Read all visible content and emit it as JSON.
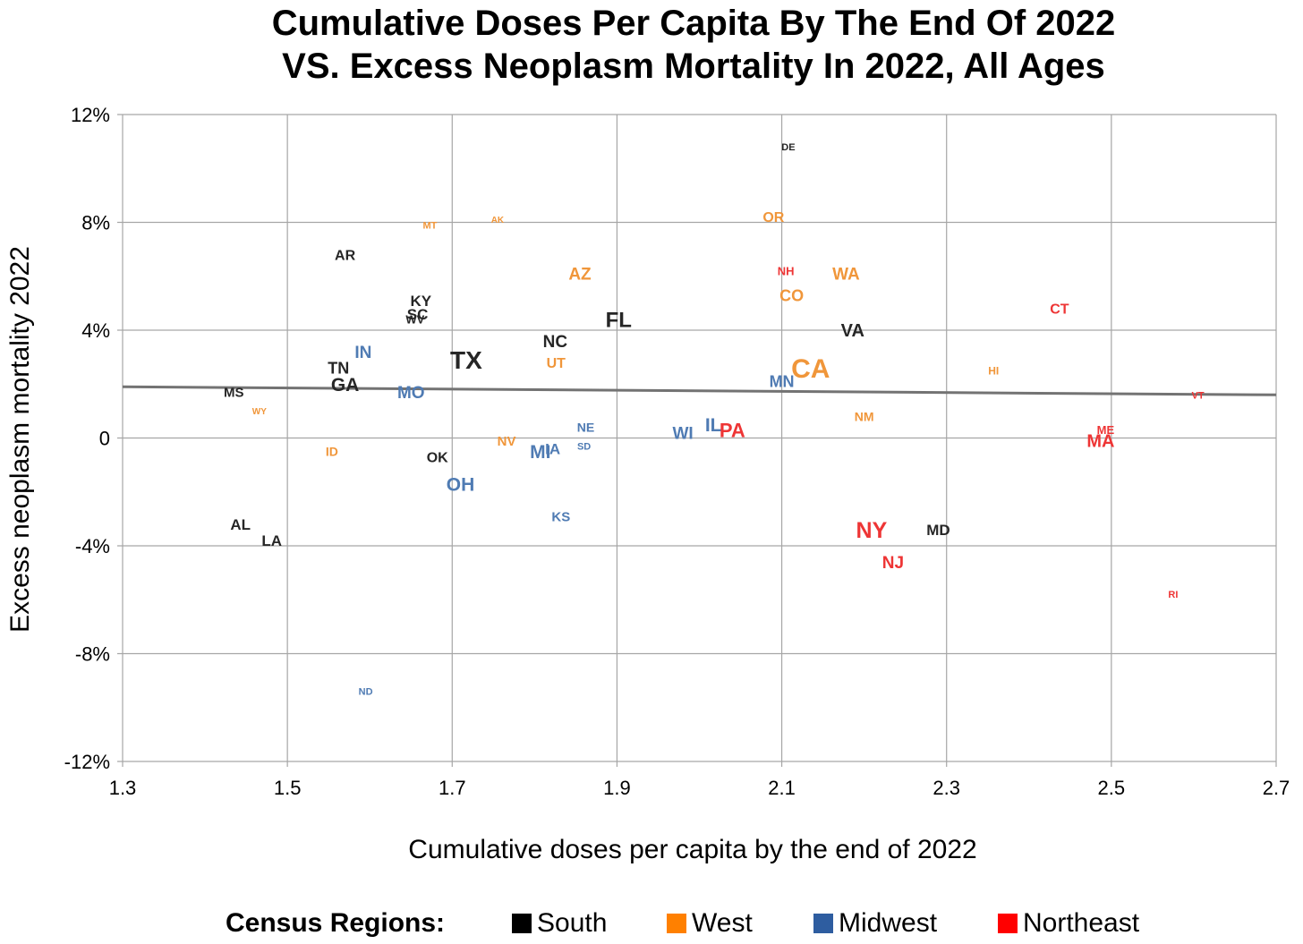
{
  "chart_data": {
    "type": "scatter",
    "title": [
      "Cumulative Doses Per Capita By The End Of 2022",
      "VS. Excess Neoplasm Mortality In 2022, All Ages"
    ],
    "xlabel": "Cumulative doses per capita by the end of 2022",
    "ylabel": "Excess neoplasm mortality 2022",
    "xlim": [
      1.3,
      2.7
    ],
    "ylim": [
      -12,
      12
    ],
    "x_ticks": [
      "1.3",
      "1.5",
      "1.7",
      "1.9",
      "2.1",
      "2.3",
      "2.5",
      "2.7"
    ],
    "y_ticks": [
      "12%",
      "8%",
      "4%",
      "0",
      "-4%",
      "-8%",
      "-12%"
    ],
    "grid": true,
    "legend_title": "Census Regions:",
    "legend_position": "bottom",
    "regions": [
      {
        "name": "South",
        "color": "#000000",
        "label_color": "#262626"
      },
      {
        "name": "West",
        "color": "#ff8000",
        "label_color": "#f0963a"
      },
      {
        "name": "Midwest",
        "color": "#2e5da0",
        "label_color": "#4f7bb3"
      },
      {
        "name": "Northeast",
        "color": "#ff0000",
        "label_color": "#ee3535"
      }
    ],
    "trendline": {
      "color": "#737373",
      "points": [
        [
          1.3,
          1.9
        ],
        [
          2.7,
          1.6
        ]
      ]
    },
    "points": [
      {
        "label": "DE",
        "x": 2.108,
        "y": 10.8,
        "region": "South",
        "size": 11
      },
      {
        "label": "AR",
        "x": 1.57,
        "y": 6.8,
        "region": "South",
        "size": 16
      },
      {
        "label": "KY",
        "x": 1.662,
        "y": 5.1,
        "region": "South",
        "size": 17
      },
      {
        "label": "SC",
        "x": 1.658,
        "y": 4.6,
        "region": "South",
        "size": 17
      },
      {
        "label": "WV",
        "x": 1.655,
        "y": 4.4,
        "region": "South",
        "size": 13
      },
      {
        "label": "NC",
        "x": 1.825,
        "y": 3.6,
        "region": "South",
        "size": 19
      },
      {
        "label": "FL",
        "x": 1.902,
        "y": 4.4,
        "region": "South",
        "size": 24
      },
      {
        "label": "TX",
        "x": 1.717,
        "y": 2.9,
        "region": "South",
        "size": 28
      },
      {
        "label": "TN",
        "x": 1.562,
        "y": 2.6,
        "region": "South",
        "size": 18
      },
      {
        "label": "GA",
        "x": 1.57,
        "y": 2.0,
        "region": "South",
        "size": 21
      },
      {
        "label": "MS",
        "x": 1.435,
        "y": 1.7,
        "region": "South",
        "size": 15
      },
      {
        "label": "VA",
        "x": 2.186,
        "y": 4.0,
        "region": "South",
        "size": 20
      },
      {
        "label": "OK",
        "x": 1.682,
        "y": -0.7,
        "region": "South",
        "size": 16
      },
      {
        "label": "AL",
        "x": 1.443,
        "y": -3.2,
        "region": "South",
        "size": 17
      },
      {
        "label": "LA",
        "x": 1.481,
        "y": -3.8,
        "region": "South",
        "size": 17
      },
      {
        "label": "MD",
        "x": 2.29,
        "y": -3.4,
        "region": "South",
        "size": 17
      },
      {
        "label": "MT",
        "x": 1.673,
        "y": 7.9,
        "region": "West",
        "size": 11
      },
      {
        "label": "AK",
        "x": 1.755,
        "y": 8.1,
        "region": "West",
        "size": 10
      },
      {
        "label": "OR",
        "x": 2.09,
        "y": 8.2,
        "region": "West",
        "size": 16
      },
      {
        "label": "AZ",
        "x": 1.855,
        "y": 6.1,
        "region": "West",
        "size": 19
      },
      {
        "label": "WA",
        "x": 2.178,
        "y": 6.1,
        "region": "West",
        "size": 19
      },
      {
        "label": "CO",
        "x": 2.112,
        "y": 5.3,
        "region": "West",
        "size": 18
      },
      {
        "label": "UT",
        "x": 1.826,
        "y": 2.8,
        "region": "West",
        "size": 16
      },
      {
        "label": "CA",
        "x": 2.135,
        "y": 2.6,
        "region": "West",
        "size": 30
      },
      {
        "label": "HI",
        "x": 2.357,
        "y": 2.5,
        "region": "West",
        "size": 12
      },
      {
        "label": "WY",
        "x": 1.466,
        "y": 1.0,
        "region": "West",
        "size": 10
      },
      {
        "label": "NM",
        "x": 2.2,
        "y": 0.8,
        "region": "West",
        "size": 14
      },
      {
        "label": "NV",
        "x": 1.766,
        "y": -0.1,
        "region": "West",
        "size": 15
      },
      {
        "label": "ID",
        "x": 1.554,
        "y": -0.5,
        "region": "West",
        "size": 14
      },
      {
        "label": "IN",
        "x": 1.592,
        "y": 3.2,
        "region": "Midwest",
        "size": 19
      },
      {
        "label": "MO",
        "x": 1.65,
        "y": 1.7,
        "region": "Midwest",
        "size": 19
      },
      {
        "label": "MN",
        "x": 2.1,
        "y": 2.1,
        "region": "Midwest",
        "size": 18
      },
      {
        "label": "NE",
        "x": 1.862,
        "y": 0.4,
        "region": "Midwest",
        "size": 14
      },
      {
        "label": "IL",
        "x": 2.017,
        "y": 0.5,
        "region": "Midwest",
        "size": 21
      },
      {
        "label": "WI",
        "x": 1.98,
        "y": 0.2,
        "region": "Midwest",
        "size": 19
      },
      {
        "label": "IA",
        "x": 1.822,
        "y": -0.4,
        "region": "Midwest",
        "size": 17
      },
      {
        "label": "MI",
        "x": 1.807,
        "y": -0.5,
        "region": "Midwest",
        "size": 21
      },
      {
        "label": "SD",
        "x": 1.86,
        "y": -0.3,
        "region": "Midwest",
        "size": 11
      },
      {
        "label": "OH",
        "x": 1.71,
        "y": -1.7,
        "region": "Midwest",
        "size": 21
      },
      {
        "label": "KS",
        "x": 1.832,
        "y": -2.9,
        "region": "Midwest",
        "size": 15
      },
      {
        "label": "ND",
        "x": 1.595,
        "y": -9.4,
        "region": "Midwest",
        "size": 11
      },
      {
        "label": "NH",
        "x": 2.105,
        "y": 6.2,
        "region": "Northeast",
        "size": 13
      },
      {
        "label": "CT",
        "x": 2.437,
        "y": 4.8,
        "region": "Northeast",
        "size": 16
      },
      {
        "label": "VT",
        "x": 2.605,
        "y": 1.6,
        "region": "Northeast",
        "size": 11
      },
      {
        "label": "PA",
        "x": 2.04,
        "y": 0.3,
        "region": "Northeast",
        "size": 22
      },
      {
        "label": "ME",
        "x": 2.493,
        "y": 0.3,
        "region": "Northeast",
        "size": 13
      },
      {
        "label": "MA",
        "x": 2.487,
        "y": -0.1,
        "region": "Northeast",
        "size": 20
      },
      {
        "label": "NY",
        "x": 2.209,
        "y": -3.4,
        "region": "Northeast",
        "size": 25
      },
      {
        "label": "NJ",
        "x": 2.235,
        "y": -4.6,
        "region": "Northeast",
        "size": 19
      },
      {
        "label": "RI",
        "x": 2.575,
        "y": -5.8,
        "region": "Northeast",
        "size": 11
      }
    ]
  }
}
